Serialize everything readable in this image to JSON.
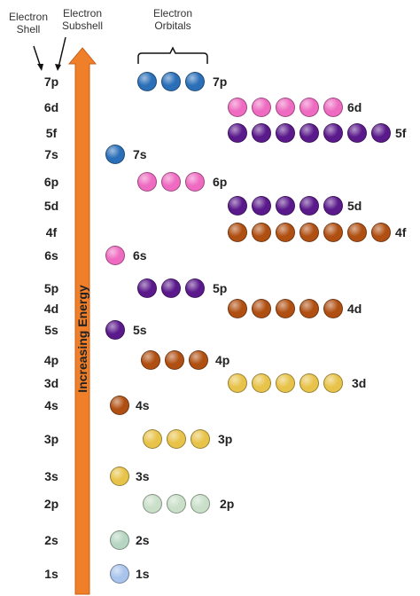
{
  "headers": {
    "electron_shell": "Electron Shell",
    "electron_subshell": "Electron Subshell",
    "electron_orbitals": "Electron Orbitals"
  },
  "arrow_label": "Increasing Energy",
  "colors": {
    "1s": "#a9c4ec",
    "2s": "#b7d6c2",
    "2p": "#c9dfc8",
    "3s": "#e8c34a",
    "3p": "#e8c34a",
    "4s": "#b04f12",
    "3d": "#e8c34a",
    "4p": "#b04f12",
    "5s": "#5b1a8c",
    "4d": "#b04f12",
    "5p": "#5b1a8c",
    "6s": "#ee6bc1",
    "4f": "#b04f12",
    "5d": "#5b1a8c",
    "6p": "#ee6bc1",
    "7s": "#2a6fb8",
    "5f": "#5b1a8c",
    "6d": "#ee6bc1",
    "7p": "#2a6fb8",
    "arrow": "#f07f2a"
  },
  "subshells": [
    {
      "label": "7p",
      "orbitals": 3
    },
    {
      "label": "6d",
      "orbitals": 5
    },
    {
      "label": "5f",
      "orbitals": 7
    },
    {
      "label": "7s",
      "orbitals": 1
    },
    {
      "label": "6p",
      "orbitals": 3
    },
    {
      "label": "5d",
      "orbitals": 5
    },
    {
      "label": "4f",
      "orbitals": 7
    },
    {
      "label": "6s",
      "orbitals": 1
    },
    {
      "label": "5p",
      "orbitals": 3
    },
    {
      "label": "4d",
      "orbitals": 5
    },
    {
      "label": "5s",
      "orbitals": 1
    },
    {
      "label": "4p",
      "orbitals": 3
    },
    {
      "label": "3d",
      "orbitals": 5
    },
    {
      "label": "4s",
      "orbitals": 1
    },
    {
      "label": "3p",
      "orbitals": 3
    },
    {
      "label": "3s",
      "orbitals": 1
    },
    {
      "label": "2p",
      "orbitals": 3
    },
    {
      "label": "2s",
      "orbitals": 1
    },
    {
      "label": "1s",
      "orbitals": 1
    }
  ]
}
